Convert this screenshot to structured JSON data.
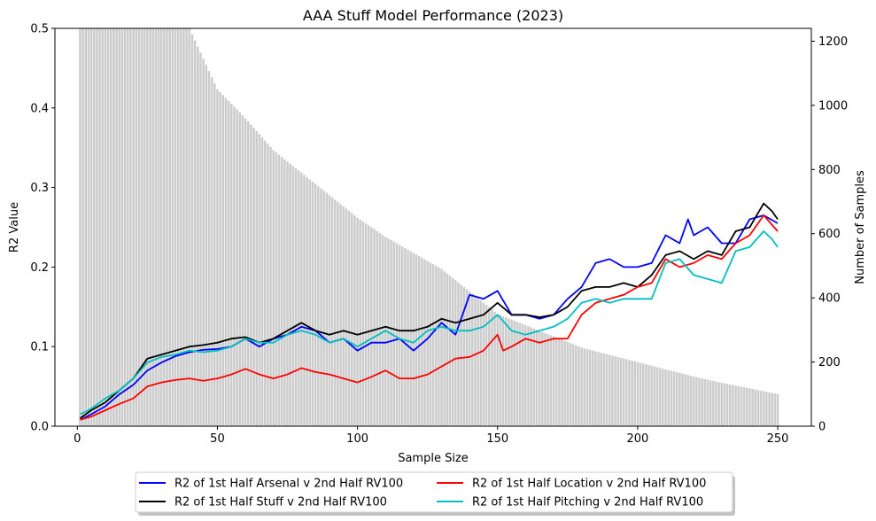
{
  "chart_data": {
    "type": "line",
    "title": "AAA Stuff Model Performance (2023)",
    "xlabel": "Sample Size",
    "ylabel": "R2 Value",
    "y2label": "Number of Samples",
    "xlim": [
      -8,
      262
    ],
    "ylim": [
      0,
      0.5
    ],
    "y2lim": [
      0,
      1240
    ],
    "xticks": [
      0,
      50,
      100,
      150,
      200,
      250
    ],
    "yticks": [
      0.0,
      0.1,
      0.2,
      0.3,
      0.4,
      0.5
    ],
    "y2ticks": [
      0,
      200,
      400,
      600,
      800,
      1000,
      1200
    ],
    "grid": false,
    "legend_placement": "bottom-center, below axes, 2 columns",
    "bars": {
      "name": "Number of Samples",
      "color": "#cccccc",
      "x_range": [
        1,
        250
      ],
      "anchor_x": [
        1,
        36,
        40,
        50,
        60,
        70,
        80,
        90,
        100,
        110,
        120,
        130,
        140,
        150,
        160,
        170,
        180,
        190,
        200,
        210,
        220,
        230,
        240,
        250
      ],
      "anchor_y": [
        1240,
        1240,
        1240,
        1050,
        960,
        860,
        790,
        720,
        650,
        590,
        540,
        490,
        420,
        350,
        315,
        280,
        245,
        222,
        200,
        177,
        155,
        135,
        118,
        100
      ]
    },
    "series": [
      {
        "name": "R2 of 1st Half Arsenal v 2nd Half RV100",
        "color": "#0000ff",
        "x": [
          1,
          5,
          10,
          15,
          20,
          25,
          30,
          35,
          40,
          45,
          50,
          55,
          60,
          65,
          70,
          75,
          80,
          85,
          90,
          95,
          100,
          105,
          110,
          115,
          120,
          125,
          130,
          135,
          140,
          145,
          150,
          155,
          160,
          165,
          170,
          175,
          180,
          185,
          190,
          195,
          200,
          205,
          210,
          215,
          218,
          220,
          225,
          230,
          235,
          240,
          245,
          250
        ],
        "y": [
          0.008,
          0.015,
          0.025,
          0.04,
          0.052,
          0.07,
          0.08,
          0.088,
          0.093,
          0.096,
          0.097,
          0.1,
          0.11,
          0.1,
          0.11,
          0.115,
          0.125,
          0.12,
          0.105,
          0.11,
          0.095,
          0.105,
          0.105,
          0.11,
          0.095,
          0.11,
          0.13,
          0.115,
          0.165,
          0.16,
          0.17,
          0.14,
          0.14,
          0.135,
          0.14,
          0.16,
          0.175,
          0.205,
          0.21,
          0.2,
          0.2,
          0.205,
          0.24,
          0.23,
          0.26,
          0.24,
          0.25,
          0.23,
          0.23,
          0.26,
          0.265,
          0.255
        ]
      },
      {
        "name": "R2 of 1st Half Stuff v 2nd Half RV100",
        "color": "#000000",
        "x": [
          1,
          5,
          10,
          15,
          20,
          25,
          30,
          35,
          40,
          45,
          50,
          55,
          60,
          65,
          70,
          75,
          80,
          85,
          90,
          95,
          100,
          105,
          110,
          115,
          120,
          125,
          130,
          135,
          140,
          145,
          150,
          155,
          160,
          165,
          170,
          175,
          180,
          185,
          190,
          195,
          200,
          205,
          210,
          215,
          220,
          225,
          230,
          235,
          240,
          245,
          248,
          250
        ],
        "y": [
          0.01,
          0.02,
          0.03,
          0.045,
          0.06,
          0.085,
          0.09,
          0.095,
          0.1,
          0.102,
          0.105,
          0.11,
          0.112,
          0.105,
          0.11,
          0.12,
          0.13,
          0.12,
          0.115,
          0.12,
          0.115,
          0.12,
          0.125,
          0.12,
          0.12,
          0.125,
          0.135,
          0.13,
          0.135,
          0.14,
          0.155,
          0.14,
          0.14,
          0.137,
          0.14,
          0.15,
          0.17,
          0.175,
          0.175,
          0.18,
          0.175,
          0.19,
          0.215,
          0.22,
          0.21,
          0.22,
          0.215,
          0.245,
          0.25,
          0.28,
          0.27,
          0.26
        ]
      },
      {
        "name": "R2 of 1st Half Location v 2nd Half RV100",
        "color": "#ff0000",
        "x": [
          1,
          5,
          10,
          15,
          20,
          25,
          30,
          35,
          40,
          45,
          50,
          55,
          60,
          65,
          70,
          75,
          80,
          85,
          90,
          95,
          100,
          105,
          110,
          115,
          120,
          125,
          130,
          135,
          140,
          145,
          150,
          152,
          155,
          160,
          165,
          170,
          175,
          180,
          185,
          190,
          195,
          200,
          205,
          210,
          215,
          220,
          225,
          230,
          235,
          240,
          245,
          250
        ],
        "y": [
          0.008,
          0.012,
          0.02,
          0.028,
          0.035,
          0.05,
          0.055,
          0.058,
          0.06,
          0.057,
          0.06,
          0.065,
          0.072,
          0.065,
          0.06,
          0.065,
          0.073,
          0.068,
          0.065,
          0.06,
          0.055,
          0.062,
          0.07,
          0.06,
          0.06,
          0.065,
          0.075,
          0.085,
          0.087,
          0.095,
          0.115,
          0.095,
          0.1,
          0.11,
          0.105,
          0.11,
          0.11,
          0.14,
          0.155,
          0.16,
          0.165,
          0.175,
          0.18,
          0.21,
          0.2,
          0.205,
          0.215,
          0.21,
          0.23,
          0.24,
          0.265,
          0.245
        ]
      },
      {
        "name": "R2 of 1st Half Pitching v 2nd Half RV100",
        "color": "#00bfbf",
        "x": [
          1,
          5,
          10,
          15,
          20,
          25,
          30,
          35,
          40,
          45,
          50,
          55,
          60,
          65,
          70,
          75,
          80,
          85,
          90,
          95,
          100,
          105,
          110,
          115,
          120,
          125,
          130,
          135,
          140,
          145,
          150,
          155,
          160,
          165,
          170,
          175,
          180,
          185,
          190,
          195,
          200,
          205,
          210,
          215,
          220,
          225,
          230,
          235,
          240,
          245,
          248,
          250
        ],
        "y": [
          0.015,
          0.022,
          0.035,
          0.045,
          0.06,
          0.08,
          0.087,
          0.09,
          0.095,
          0.093,
          0.095,
          0.1,
          0.11,
          0.105,
          0.105,
          0.115,
          0.12,
          0.115,
          0.105,
          0.11,
          0.1,
          0.11,
          0.12,
          0.11,
          0.105,
          0.12,
          0.125,
          0.12,
          0.12,
          0.125,
          0.14,
          0.12,
          0.115,
          0.12,
          0.125,
          0.135,
          0.155,
          0.16,
          0.155,
          0.16,
          0.16,
          0.16,
          0.205,
          0.21,
          0.19,
          0.185,
          0.18,
          0.22,
          0.225,
          0.245,
          0.235,
          0.225
        ]
      }
    ]
  }
}
